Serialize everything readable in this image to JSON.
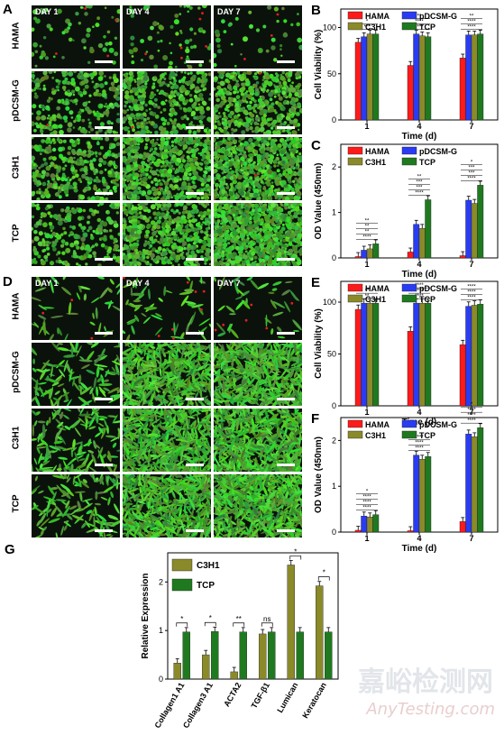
{
  "panels": {
    "A": {
      "label": "A",
      "days": [
        "DAY 1",
        "DAY 4",
        "DAY 7"
      ],
      "rows": [
        "HAMA",
        "pDCSM-G",
        "C3H1",
        "TCP"
      ]
    },
    "D": {
      "label": "D",
      "days": [
        "DAY 1",
        "DAY 4",
        "DAY 7"
      ],
      "rows": [
        "HAMA",
        "pDCSM-G",
        "C3H1",
        "TCP"
      ]
    }
  },
  "colors": {
    "HAMA": "#ff1a1a",
    "pDCSM-G": "#2a3cf2",
    "C3H1": "#8a8a2a",
    "TCP": "#1f7a1f"
  },
  "chart_data": [
    {
      "id": "B",
      "type": "bar",
      "label": "B",
      "xlabel": "Time (d)",
      "ylabel": "Cell Viability (%)",
      "ylim": [
        0,
        120
      ],
      "yticks": [
        0,
        50,
        100
      ],
      "categories": [
        "1",
        "4",
        "7"
      ],
      "series": [
        {
          "name": "HAMA",
          "values": [
            84,
            59,
            67
          ]
        },
        {
          "name": "pDCSM-G",
          "values": [
            90,
            93,
            92
          ]
        },
        {
          "name": "C3H1",
          "values": [
            93,
            91,
            92
          ]
        },
        {
          "name": "TCP",
          "values": [
            93,
            90,
            93
          ]
        }
      ],
      "sig": [
        [
          "***",
          "*"
        ],
        [
          "****",
          "****",
          "**"
        ],
        [
          "****",
          "****",
          "**"
        ]
      ]
    },
    {
      "id": "C",
      "type": "bar",
      "label": "C",
      "xlabel": "Time (d)",
      "ylabel": "OD Value (450nm)",
      "ylim": [
        0,
        2.5
      ],
      "yticks": [
        0,
        1,
        2
      ],
      "categories": [
        "1",
        "4",
        "7"
      ],
      "series": [
        {
          "name": "HAMA",
          "values": [
            0.03,
            0.13,
            0.05
          ]
        },
        {
          "name": "pDCSM-G",
          "values": [
            0.17,
            0.74,
            1.27
          ]
        },
        {
          "name": "C3H1",
          "values": [
            0.2,
            0.65,
            1.2
          ]
        },
        {
          "name": "TCP",
          "values": [
            0.31,
            1.28,
            1.6
          ]
        }
      ],
      "sig": [
        [
          "****",
          "**",
          "**",
          "**"
        ],
        [
          "****",
          "***",
          "***",
          "**"
        ],
        [
          "****",
          "***",
          "***",
          "*"
        ]
      ]
    },
    {
      "id": "E",
      "type": "bar",
      "label": "E",
      "xlabel": "Time (d)",
      "ylabel": "Cell Viability (%)",
      "ylim": [
        0,
        120
      ],
      "yticks": [
        0,
        50,
        100
      ],
      "categories": [
        "1",
        "4",
        "7"
      ],
      "series": [
        {
          "name": "HAMA",
          "values": [
            93,
            72,
            59
          ]
        },
        {
          "name": "pDCSM-G",
          "values": [
            99,
            99,
            96
          ]
        },
        {
          "name": "C3H1",
          "values": [
            99,
            99,
            97
          ]
        },
        {
          "name": "TCP",
          "values": [
            99,
            99,
            98
          ]
        }
      ],
      "sig": [
        [
          "**",
          "**"
        ],
        [
          "****",
          "****",
          "****"
        ],
        [
          "****",
          "****",
          "****"
        ]
      ]
    },
    {
      "id": "F",
      "type": "bar",
      "label": "F",
      "xlabel": "Time (d)",
      "ylabel": "OD Value (450nm)",
      "ylim": [
        0,
        2.5
      ],
      "yticks": [
        0,
        1,
        2
      ],
      "categories": [
        "1",
        "4",
        "7"
      ],
      "series": [
        {
          "name": "HAMA",
          "values": [
            0.04,
            0.03,
            0.23
          ]
        },
        {
          "name": "pDCSM-G",
          "values": [
            0.35,
            1.68,
            2.14
          ]
        },
        {
          "name": "C3H1",
          "values": [
            0.33,
            1.59,
            2.08
          ]
        },
        {
          "name": "TCP",
          "values": [
            0.38,
            1.65,
            2.28
          ]
        }
      ],
      "sig": [
        [
          "****",
          "****",
          "****",
          "*"
        ],
        [
          "****",
          "****",
          "****"
        ],
        [
          "****",
          "****",
          "****",
          "*"
        ]
      ]
    },
    {
      "id": "G",
      "type": "bar",
      "label": "G",
      "xlabel": "",
      "ylabel": "Relative Expression",
      "ylim": [
        0,
        2.6
      ],
      "yticks": [
        0,
        1,
        2
      ],
      "categories": [
        "Collagen1 A1",
        "Collagen3 A1",
        "ACTA2",
        "TGF-β1",
        "Lumican",
        "Keratocan"
      ],
      "series": [
        {
          "name": "C3H1",
          "values": [
            0.33,
            0.5,
            0.15,
            0.93,
            2.35,
            1.92
          ]
        },
        {
          "name": "TCP",
          "values": [
            0.97,
            0.98,
            0.97,
            0.97,
            0.97,
            0.97
          ]
        }
      ],
      "sig": [
        "*",
        "*",
        "**",
        "ns",
        "*",
        "*"
      ]
    }
  ],
  "watermark": {
    "cn": "嘉峪检测网",
    "en": "AnyTesting.com"
  }
}
